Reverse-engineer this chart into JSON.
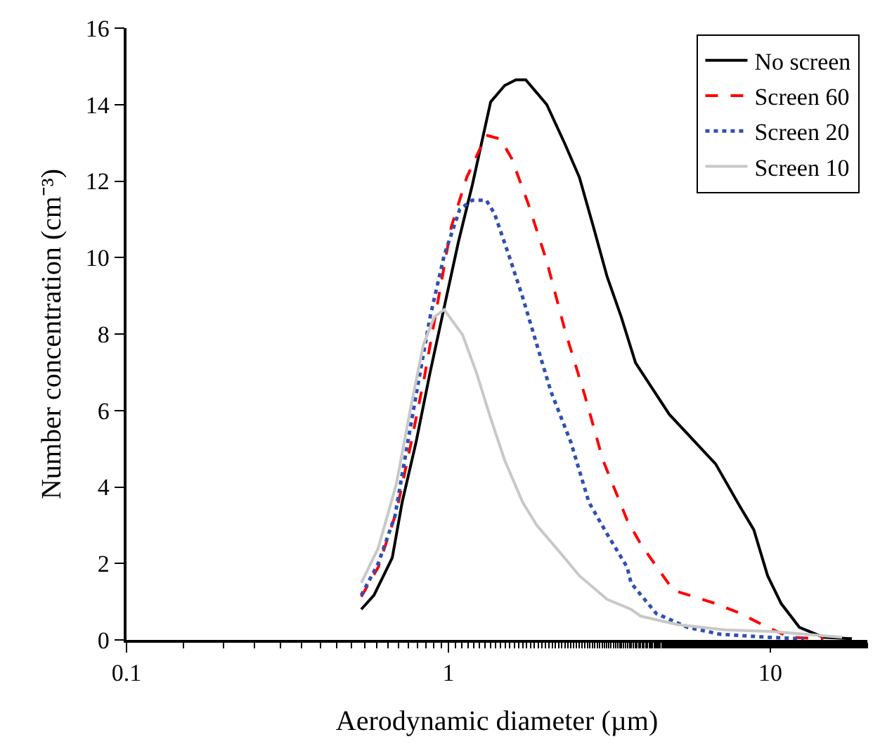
{
  "chart_data": {
    "type": "line",
    "xlabel": "Aerodynamic diameter (µm)",
    "ylabel": "Number concentration (cm⁻³)",
    "log": "x",
    "xlim": [
      0.1,
      20
    ],
    "xticks": [
      0.1,
      1,
      10
    ],
    "ylim": [
      0,
      16
    ],
    "yticks": [
      0,
      2,
      4,
      6,
      8,
      10,
      12,
      14,
      16
    ],
    "grid": false,
    "legend": "top right",
    "marker": "none",
    "series": [
      {
        "name": "No screen",
        "color": "#000000",
        "line_style": "solid",
        "x": [
          0.536,
          0.587,
          0.669,
          0.718,
          0.793,
          0.877,
          0.97,
          1.073,
          1.186,
          1.352,
          1.495,
          1.62,
          1.738,
          2.02,
          2.3,
          2.55,
          2.82,
          3.11,
          3.44,
          3.81,
          4.85,
          6.76,
          8.03,
          8.88,
          9.8,
          10.8,
          12.3,
          14.6,
          17.9
        ],
        "values": [
          0.8,
          1.17,
          2.15,
          3.6,
          5.17,
          7.0,
          8.7,
          10.4,
          11.9,
          14.07,
          14.5,
          14.65,
          14.65,
          14.0,
          12.97,
          12.1,
          10.8,
          9.5,
          8.45,
          7.25,
          5.9,
          4.6,
          3.5,
          2.88,
          1.68,
          0.95,
          0.33,
          0.07,
          0.03
        ]
      },
      {
        "name": "Screen 60",
        "color": "#ff0000",
        "line_style": "dashed",
        "x": [
          0.536,
          0.605,
          0.689,
          0.762,
          0.843,
          0.932,
          1.02,
          1.14,
          1.31,
          1.45,
          1.57,
          1.77,
          2.02,
          2.3,
          2.65,
          3.02,
          3.59,
          3.96,
          4.99,
          6.76,
          8.03,
          9.8,
          11.5,
          14.6
        ],
        "values": [
          1.13,
          1.9,
          3.35,
          5.07,
          6.9,
          8.96,
          10.8,
          12.1,
          13.2,
          13.1,
          12.6,
          11.4,
          9.9,
          8.1,
          6.4,
          4.7,
          3.13,
          2.5,
          1.3,
          0.95,
          0.7,
          0.33,
          0.07,
          0.03
        ]
      },
      {
        "name": "Screen 20",
        "color": "#3050b0",
        "line_style": "dotted",
        "x": [
          0.536,
          0.605,
          0.682,
          0.74,
          0.801,
          0.877,
          0.97,
          1.084,
          1.186,
          1.31,
          1.39,
          1.54,
          1.7,
          1.88,
          2.08,
          2.4,
          2.73,
          3.11,
          3.59,
          3.69,
          4.42,
          5.53,
          6.96,
          9.8,
          12.7
        ],
        "values": [
          1.17,
          2.0,
          3.24,
          4.96,
          6.6,
          8.45,
          10.06,
          11.26,
          11.5,
          11.5,
          11.15,
          10.06,
          8.96,
          7.73,
          6.5,
          5.17,
          3.6,
          2.77,
          1.9,
          1.49,
          0.69,
          0.33,
          0.15,
          0.07,
          0.03
        ]
      },
      {
        "name": "Screen 10",
        "color": "#c8c8c8",
        "line_style": "solid",
        "x": [
          0.536,
          0.605,
          0.689,
          0.762,
          0.836,
          0.904,
          0.97,
          1.106,
          1.22,
          1.352,
          1.495,
          1.7,
          1.88,
          2.235,
          2.55,
          3.11,
          3.69,
          3.96,
          5.15,
          7.25,
          10.1,
          12.7,
          16.7
        ],
        "values": [
          1.49,
          2.4,
          4.08,
          6.05,
          7.73,
          8.45,
          8.64,
          7.98,
          7.0,
          5.8,
          4.7,
          3.6,
          3.0,
          2.26,
          1.68,
          1.06,
          0.8,
          0.62,
          0.4,
          0.26,
          0.22,
          0.15,
          0.07
        ]
      }
    ]
  }
}
